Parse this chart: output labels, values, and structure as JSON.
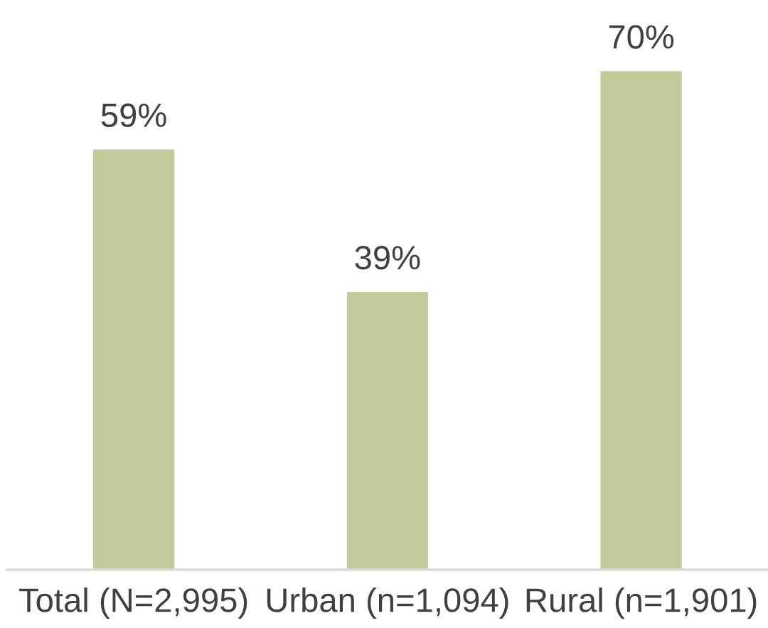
{
  "chart_data": {
    "type": "bar",
    "categories": [
      "Total (N=2,995)",
      "Urban (n=1,094)",
      "Rural (n=1,901)"
    ],
    "values": [
      59,
      39,
      70
    ],
    "value_labels": [
      "59%",
      "39%",
      "70%"
    ],
    "color": "#c4cb9b",
    "tick_labels": "x"
  }
}
